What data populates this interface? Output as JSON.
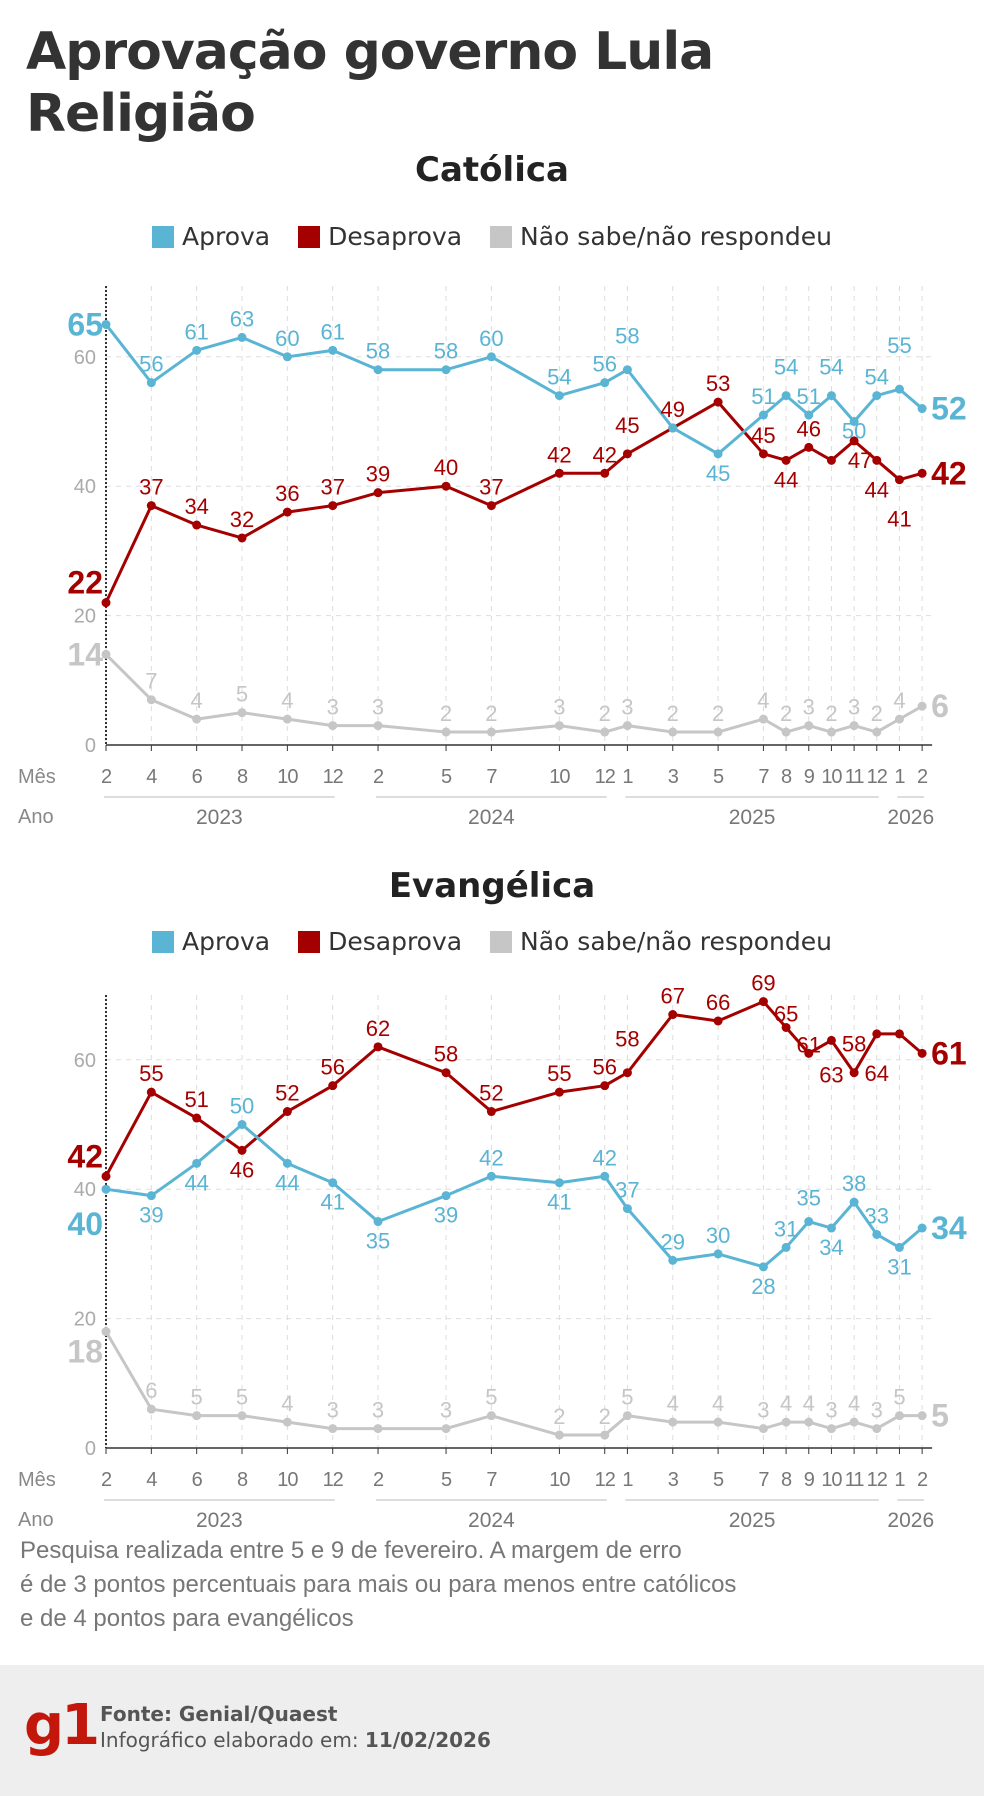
{
  "title_line1": "Aprovação governo Lula",
  "title_line2": "Religião",
  "legend": [
    "Aprova",
    "Desaprova",
    "Não sabe/não respondeu"
  ],
  "colors": {
    "aprova": "#5ab4d4",
    "desaprova": "#a50000",
    "nao_sabe": "#c6c6c6"
  },
  "note": [
    "Pesquisa realizada entre 5 e 9 de fevereiro. A margem de erro",
    "é de 3 pontos percentuais para mais ou para menos entre católicos",
    "e de 4 pontos para evangélicos"
  ],
  "footer": {
    "logo": "g1",
    "source_label": "Fonte: Genial/Quaest",
    "made_label": "Infográfico elaborado em: ",
    "made_date": "11/02/2026"
  },
  "chart_data": [
    {
      "type": "line",
      "title": "Católica",
      "row_labels": {
        "month": "Mês",
        "year": "Ano"
      },
      "months": [
        2,
        4,
        6,
        8,
        10,
        12,
        2,
        5,
        7,
        10,
        12,
        1,
        3,
        5,
        7,
        8,
        9,
        10,
        11,
        12,
        1,
        2
      ],
      "years": [
        2023,
        2023,
        2023,
        2023,
        2023,
        2023,
        2024,
        2024,
        2024,
        2024,
        2024,
        2025,
        2025,
        2025,
        2025,
        2025,
        2025,
        2025,
        2025,
        2025,
        2026,
        2026
      ],
      "year_labels": [
        "2023",
        "2024",
        "2025",
        "2026"
      ],
      "yticks": [
        0,
        20,
        40,
        60
      ],
      "grid": true,
      "series": [
        {
          "name": "Aprova",
          "values": [
            65,
            56,
            61,
            63,
            60,
            61,
            58,
            58,
            60,
            54,
            56,
            58,
            49,
            45,
            51,
            54,
            51,
            54,
            50,
            54,
            55,
            52
          ]
        },
        {
          "name": "Desaprova",
          "values": [
            22,
            37,
            34,
            32,
            36,
            37,
            39,
            40,
            37,
            42,
            42,
            45,
            49,
            53,
            45,
            44,
            46,
            44,
            47,
            44,
            41,
            42
          ]
        },
        {
          "name": "Não sabe/não respondeu",
          "values": [
            14,
            7,
            4,
            5,
            4,
            3,
            3,
            2,
            2,
            3,
            2,
            3,
            2,
            2,
            4,
            2,
            3,
            2,
            3,
            2,
            4,
            6
          ]
        }
      ]
    },
    {
      "type": "line",
      "title": "Evangélica",
      "row_labels": {
        "month": "Mês",
        "year": "Ano"
      },
      "months": [
        2,
        4,
        6,
        8,
        10,
        12,
        2,
        5,
        7,
        10,
        12,
        1,
        3,
        5,
        7,
        8,
        9,
        10,
        11,
        12,
        1,
        2
      ],
      "years": [
        2023,
        2023,
        2023,
        2023,
        2023,
        2023,
        2024,
        2024,
        2024,
        2024,
        2024,
        2025,
        2025,
        2025,
        2025,
        2025,
        2025,
        2025,
        2025,
        2025,
        2026,
        2026
      ],
      "year_labels": [
        "2023",
        "2024",
        "2025",
        "2026"
      ],
      "yticks": [
        0,
        20,
        40,
        60
      ],
      "grid": true,
      "series": [
        {
          "name": "Aprova",
          "values": [
            40,
            39,
            44,
            50,
            44,
            41,
            35,
            39,
            42,
            41,
            42,
            37,
            29,
            30,
            28,
            31,
            35,
            34,
            38,
            33,
            31,
            34
          ]
        },
        {
          "name": "Desaprova",
          "values": [
            42,
            55,
            51,
            46,
            52,
            56,
            62,
            58,
            52,
            55,
            56,
            58,
            67,
            66,
            69,
            65,
            61,
            63,
            58,
            64,
            64,
            61
          ]
        },
        {
          "name": "Não sabe/não respondeu",
          "values": [
            18,
            6,
            5,
            5,
            4,
            3,
            3,
            3,
            5,
            2,
            2,
            5,
            4,
            4,
            3,
            4,
            4,
            3,
            4,
            3,
            5,
            5
          ]
        }
      ]
    }
  ]
}
